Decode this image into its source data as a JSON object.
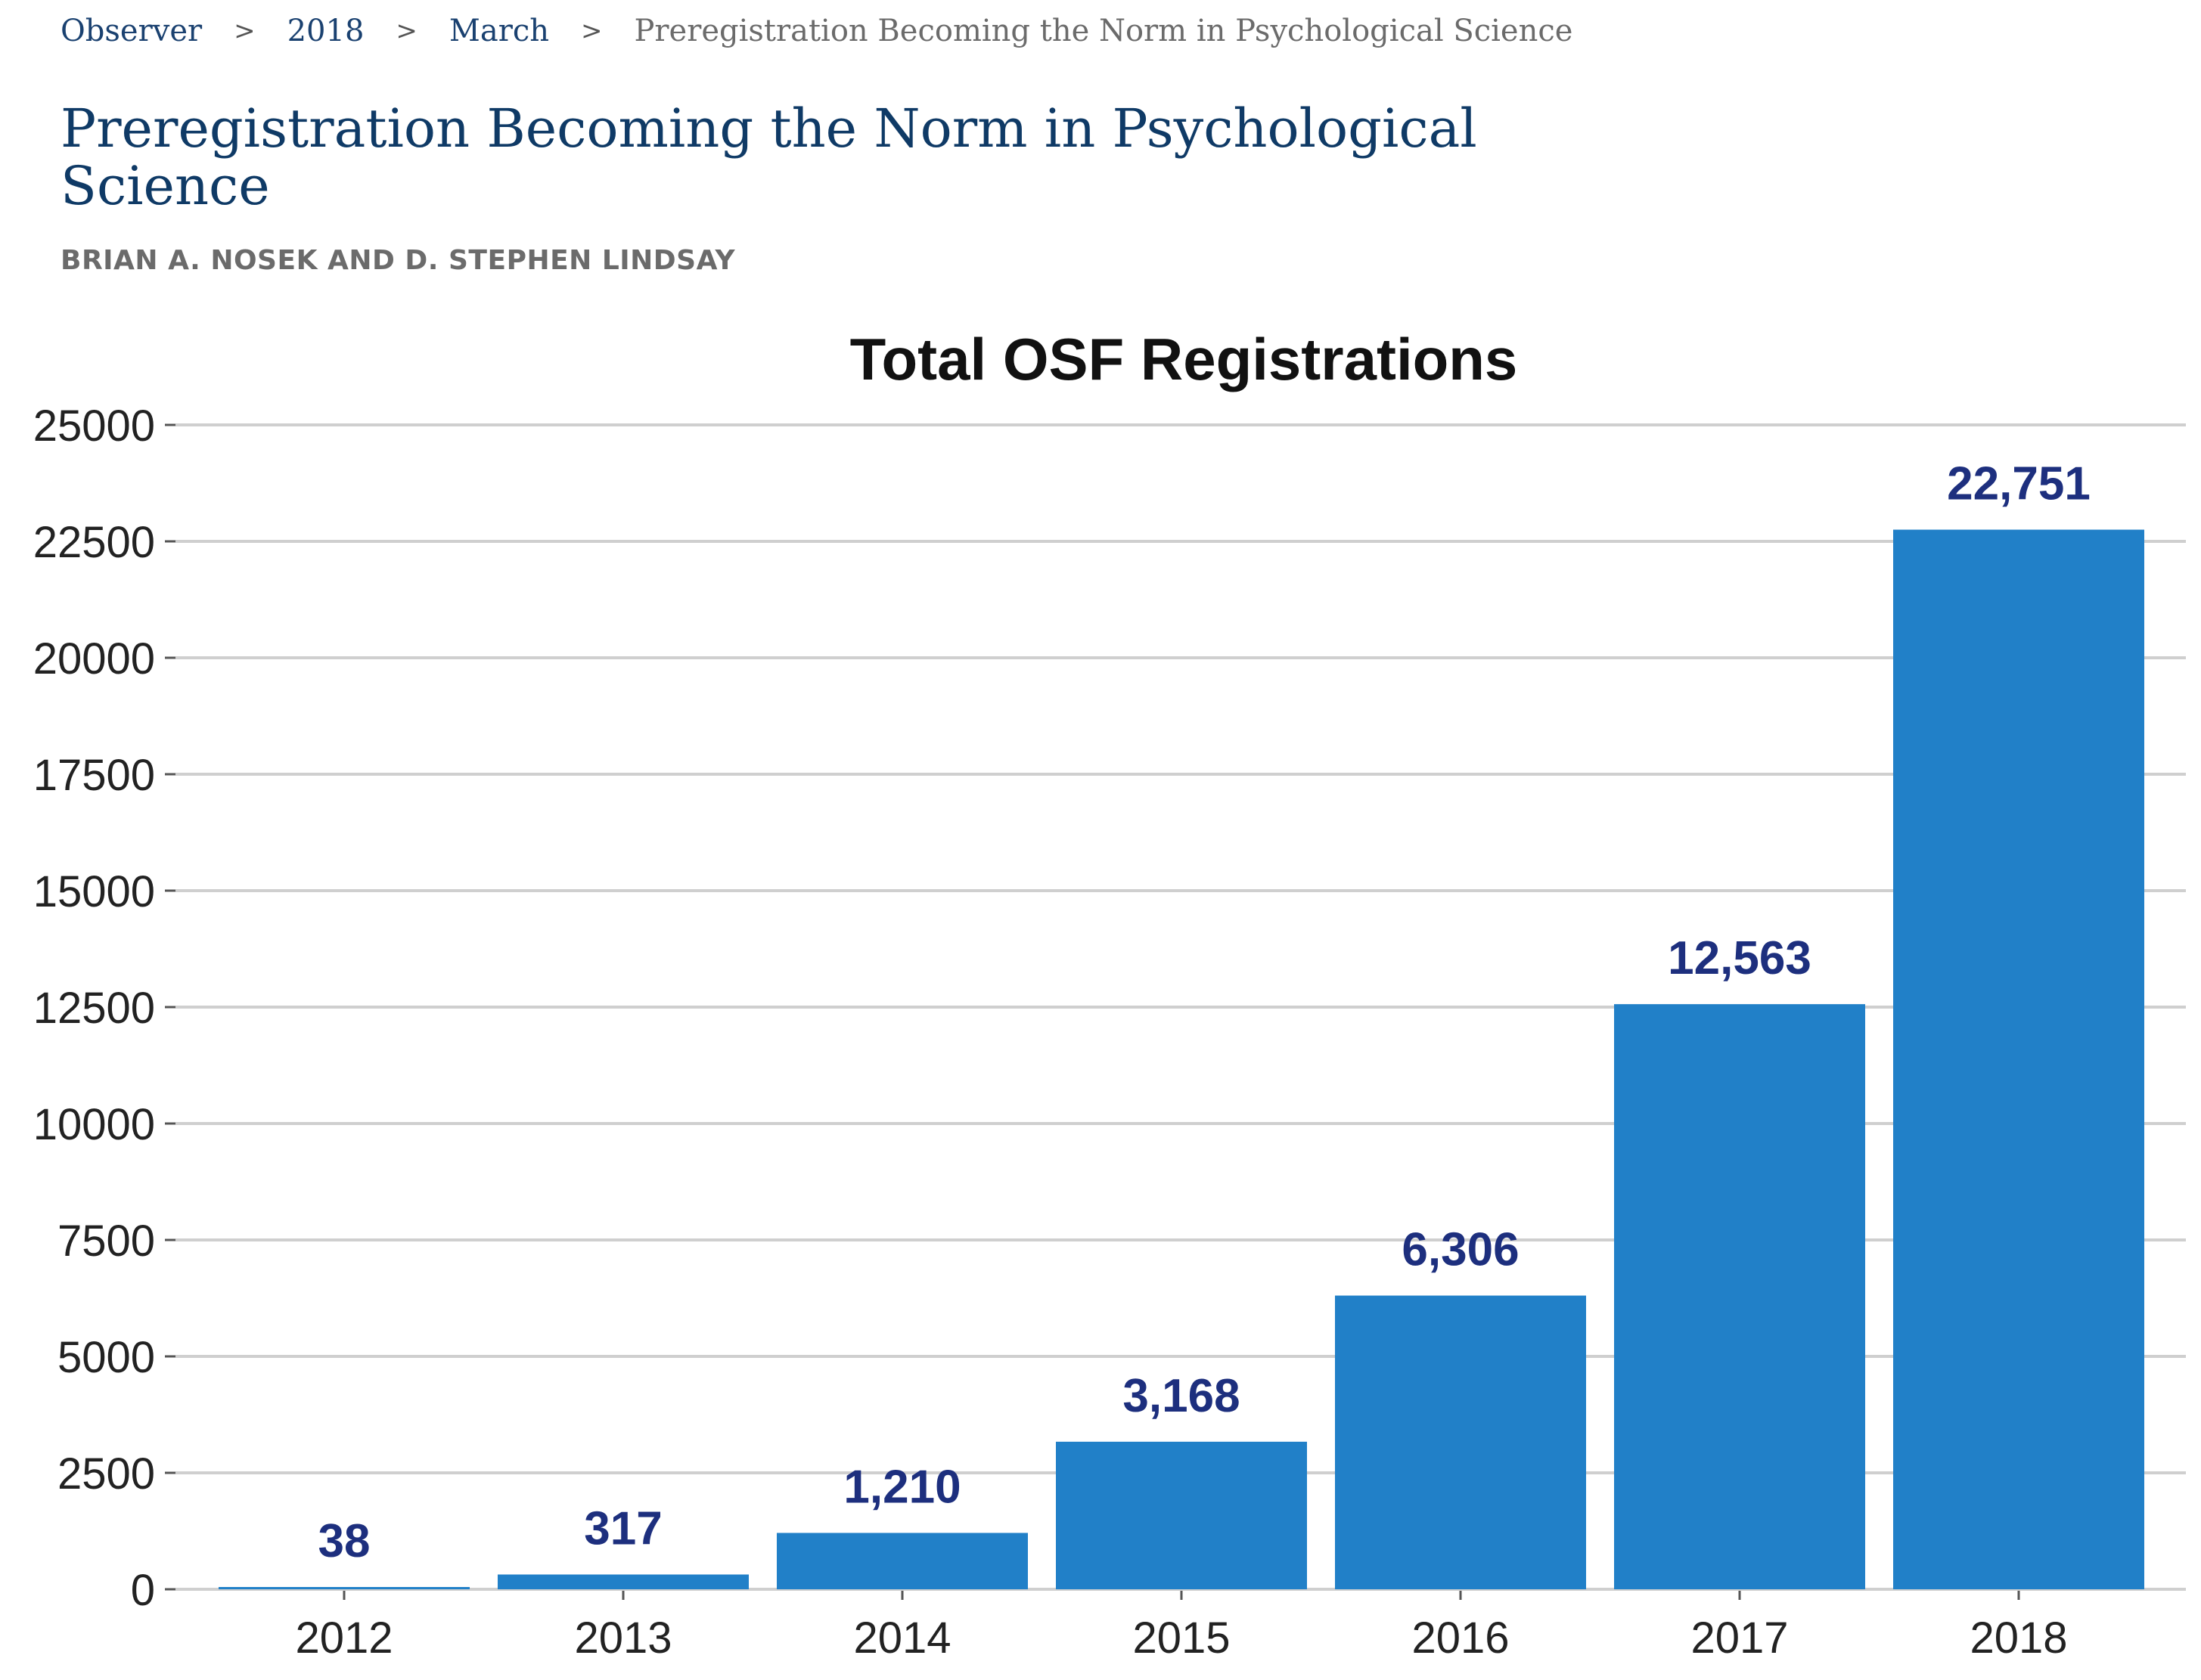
{
  "breadcrumb": {
    "items": [
      "Observer",
      "2018",
      "March"
    ],
    "separator": ">",
    "current": "Preregistration Becoming the Norm in Psychological Science"
  },
  "article": {
    "title": "Preregistration Becoming the Norm in Psychological Science",
    "byline": "BRIAN A. NOSEK AND D. STEPHEN LINDSAY"
  },
  "colors": {
    "bar": "#2180c8",
    "data_label": "#1d2f7e",
    "title_text": "#0f3a66",
    "link_text": "#1a4170"
  },
  "chart_data": {
    "type": "bar",
    "title": "Total OSF Registrations",
    "categories": [
      "2012",
      "2013",
      "2014",
      "2015",
      "2016",
      "2017",
      "2018"
    ],
    "values": [
      38,
      317,
      1210,
      3168,
      6306,
      12563,
      22751
    ],
    "data_labels": [
      "38",
      "317",
      "1,210",
      "3,168",
      "6,306",
      "12,563",
      "22,751"
    ],
    "ylim": [
      0,
      25000
    ],
    "yticks": [
      0,
      2500,
      5000,
      7500,
      10000,
      12500,
      15000,
      17500,
      20000,
      22500,
      25000
    ],
    "ytick_labels": [
      "0",
      "2500",
      "5000",
      "7500",
      "10000",
      "12500",
      "15000",
      "17500",
      "20000",
      "22500",
      "25000"
    ],
    "xlabel": "",
    "ylabel": "",
    "grid": true,
    "legend": "none"
  }
}
